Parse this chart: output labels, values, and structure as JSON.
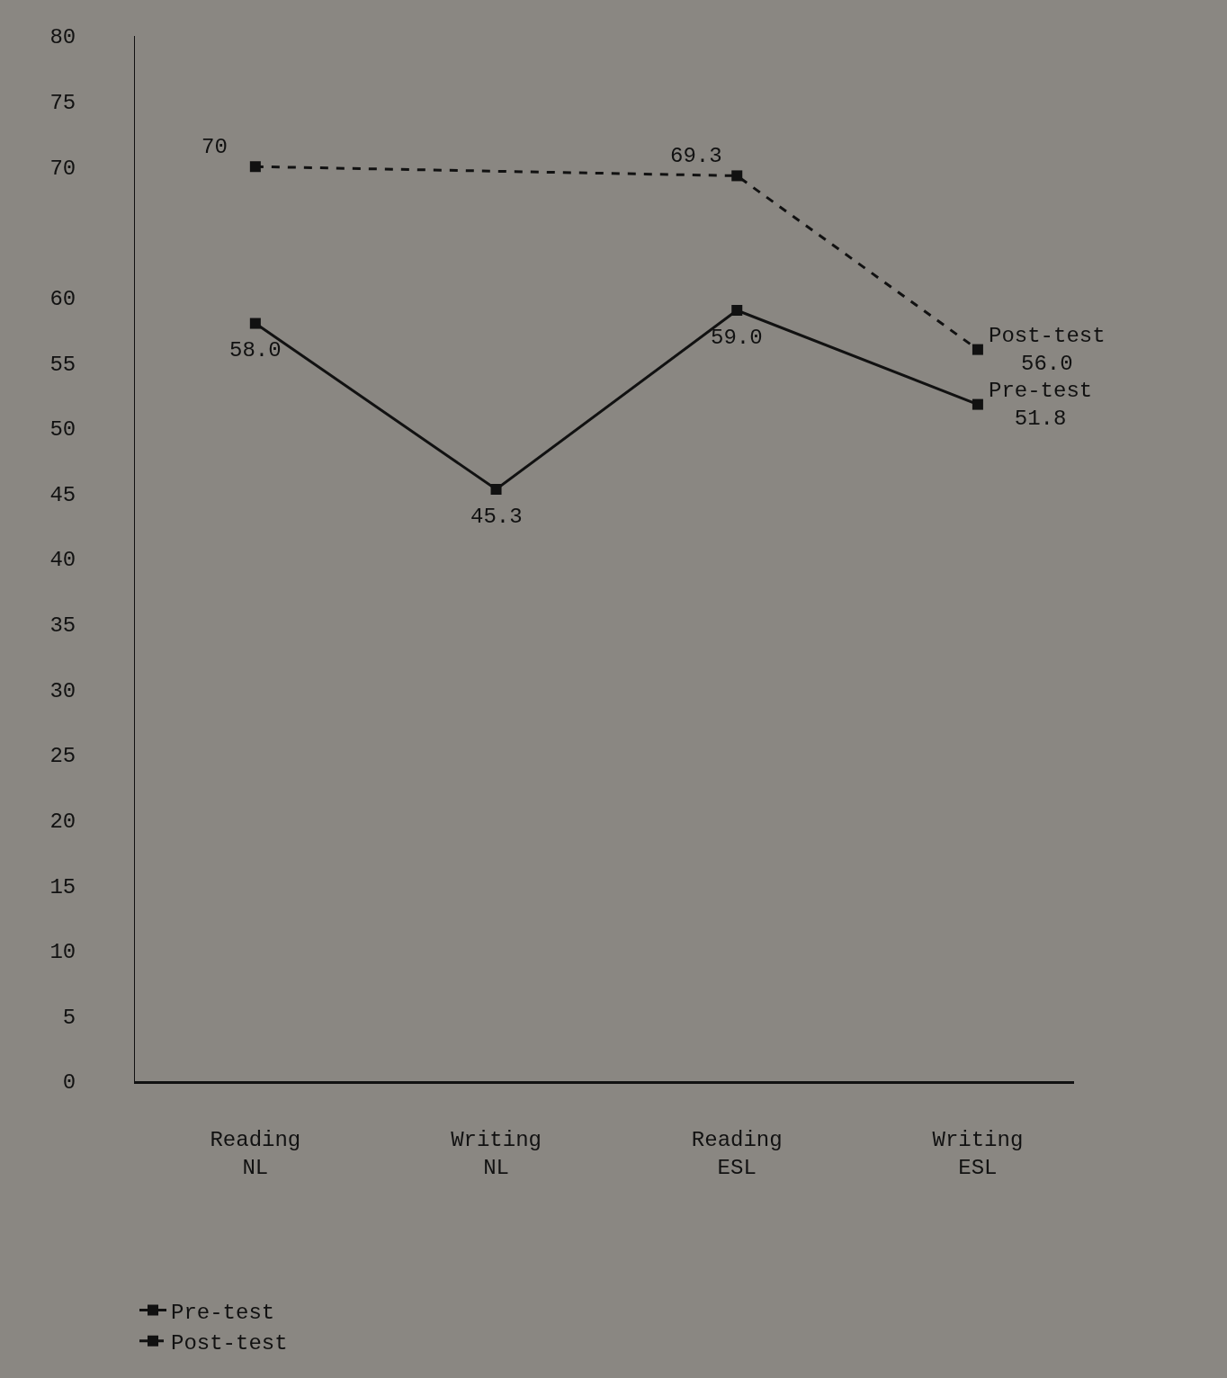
{
  "chart_data": {
    "type": "line",
    "categories": [
      "Reading\nNL",
      "Writing\nNL",
      "Reading\nESL",
      "Writing\nESL"
    ],
    "series": [
      {
        "name": "Pre-test",
        "color": "#111111",
        "line_style": "solid",
        "values": [
          58.0,
          45.3,
          59.0,
          51.8
        ],
        "value_labels": [
          "58.0",
          "45.3",
          "59.0",
          "51.8"
        ]
      },
      {
        "name": "Post-test",
        "color": "#111111",
        "line_style": "dashed",
        "values": [
          70,
          null,
          69.3,
          56.0
        ],
        "value_labels": [
          "70",
          null,
          "69.3",
          "56.0"
        ]
      }
    ],
    "ylim": [
      0,
      80
    ],
    "yticks": [
      0,
      5,
      10,
      15,
      20,
      25,
      30,
      35,
      40,
      45,
      50,
      55,
      60,
      70,
      75,
      80
    ],
    "marker": "square",
    "grid": false,
    "legend": "bottom left"
  }
}
